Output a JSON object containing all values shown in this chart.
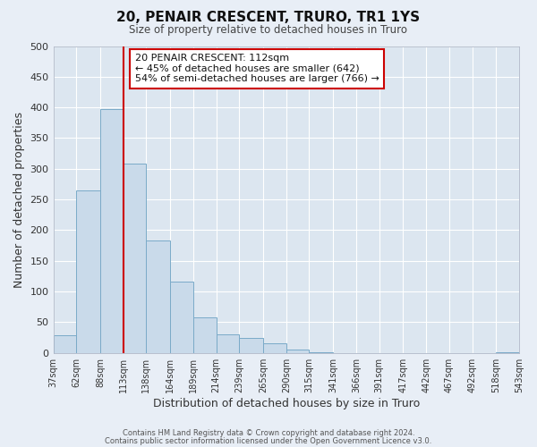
{
  "title": "20, PENAIR CRESCENT, TRURO, TR1 1YS",
  "subtitle": "Size of property relative to detached houses in Truro",
  "xlabel": "Distribution of detached houses by size in Truro",
  "ylabel": "Number of detached properties",
  "bins": [
    37,
    62,
    88,
    113,
    138,
    164,
    189,
    214,
    239,
    265,
    290,
    315,
    341,
    366,
    391,
    417,
    442,
    467,
    492,
    518,
    543
  ],
  "counts": [
    28,
    265,
    397,
    308,
    183,
    116,
    58,
    30,
    25,
    15,
    6,
    1,
    0,
    0,
    0,
    0,
    0,
    0,
    0,
    1
  ],
  "bar_color": "#c9daea",
  "bar_edge_color": "#7aaac8",
  "vline_x": 113,
  "vline_color": "#cc0000",
  "ylim": [
    0,
    500
  ],
  "yticks": [
    0,
    50,
    100,
    150,
    200,
    250,
    300,
    350,
    400,
    450,
    500
  ],
  "fig_bg_color": "#e8eef6",
  "plot_bg_color": "#dce6f0",
  "grid_color": "#ffffff",
  "annotation_title": "20 PENAIR CRESCENT: 112sqm",
  "annotation_line1": "← 45% of detached houses are smaller (642)",
  "annotation_line2": "54% of semi-detached houses are larger (766) →",
  "annotation_box_color": "#ffffff",
  "annotation_box_edge": "#cc0000",
  "footer1": "Contains HM Land Registry data © Crown copyright and database right 2024.",
  "footer2": "Contains public sector information licensed under the Open Government Licence v3.0."
}
